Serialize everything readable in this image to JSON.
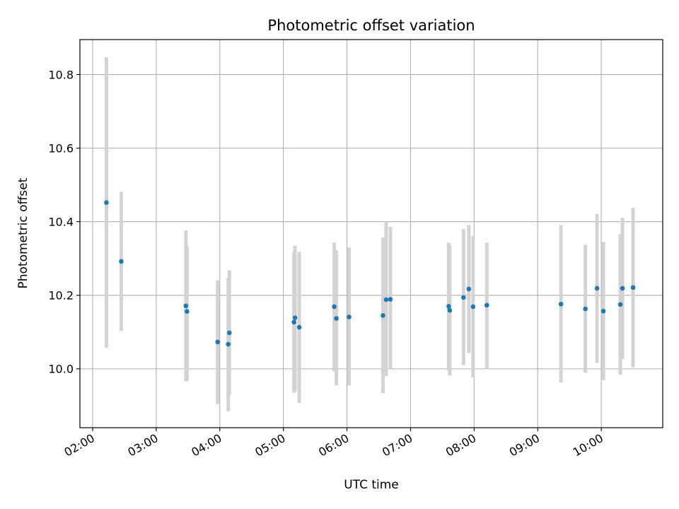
{
  "chart_data": {
    "type": "scatter",
    "title": "Photometric offset variation",
    "xlabel": "UTC time",
    "ylabel": "Photometric offset",
    "x_tick_labels": [
      "02:00",
      "03:00",
      "04:00",
      "05:00",
      "06:00",
      "07:00",
      "08:00",
      "09:00",
      "10:00"
    ],
    "y_tick_labels": [
      "10.0",
      "10.2",
      "10.4",
      "10.6",
      "10.8"
    ],
    "xlim": [
      "01:48",
      "10:58"
    ],
    "ylim": [
      9.84,
      10.895
    ],
    "grid": true,
    "colors": {
      "point": "#1f77b4",
      "errorbar": "#d3d3d3",
      "grid": "#b0b0b0",
      "axes": "#000000"
    },
    "points": [
      {
        "x": "02:13",
        "y": 10.452,
        "low": 10.057,
        "high": 10.847
      },
      {
        "x": "02:27",
        "y": 10.292,
        "low": 10.103,
        "high": 10.481
      },
      {
        "x": "03:28",
        "y": 10.171,
        "low": 9.966,
        "high": 10.376
      },
      {
        "x": "03:29",
        "y": 10.156,
        "low": 9.967,
        "high": 10.334
      },
      {
        "x": "03:58",
        "y": 10.073,
        "low": 9.904,
        "high": 10.241
      },
      {
        "x": "04:08",
        "y": 10.067,
        "low": 9.885,
        "high": 10.247
      },
      {
        "x": "04:09",
        "y": 10.098,
        "low": 9.93,
        "high": 10.268
      },
      {
        "x": "05:10",
        "y": 10.127,
        "low": 9.935,
        "high": 10.318
      },
      {
        "x": "05:11",
        "y": 10.139,
        "low": 9.94,
        "high": 10.335
      },
      {
        "x": "05:15",
        "y": 10.113,
        "low": 9.907,
        "high": 10.318
      },
      {
        "x": "05:48",
        "y": 10.169,
        "low": 9.993,
        "high": 10.343
      },
      {
        "x": "05:50",
        "y": 10.137,
        "low": 9.955,
        "high": 10.322
      },
      {
        "x": "06:02",
        "y": 10.141,
        "low": 9.955,
        "high": 10.33
      },
      {
        "x": "06:34",
        "y": 10.145,
        "low": 9.934,
        "high": 10.357
      },
      {
        "x": "06:37",
        "y": 10.188,
        "low": 9.98,
        "high": 10.4
      },
      {
        "x": "06:41",
        "y": 10.189,
        "low": 9.998,
        "high": 10.386
      },
      {
        "x": "07:36",
        "y": 10.17,
        "low": 9.995,
        "high": 10.343
      },
      {
        "x": "07:37",
        "y": 10.159,
        "low": 9.982,
        "high": 10.336
      },
      {
        "x": "07:50",
        "y": 10.194,
        "low": 10.01,
        "high": 10.38
      },
      {
        "x": "07:55",
        "y": 10.217,
        "low": 10.043,
        "high": 10.391
      },
      {
        "x": "07:59",
        "y": 10.169,
        "low": 9.976,
        "high": 10.36
      },
      {
        "x": "08:12",
        "y": 10.173,
        "low": 10.0,
        "high": 10.343
      },
      {
        "x": "09:22",
        "y": 10.176,
        "low": 9.963,
        "high": 10.391
      },
      {
        "x": "09:45",
        "y": 10.163,
        "low": 9.99,
        "high": 10.337
      },
      {
        "x": "09:56",
        "y": 10.219,
        "low": 10.016,
        "high": 10.421
      },
      {
        "x": "10:02",
        "y": 10.157,
        "low": 9.969,
        "high": 10.345
      },
      {
        "x": "10:18",
        "y": 10.175,
        "low": 9.984,
        "high": 10.366
      },
      {
        "x": "10:20",
        "y": 10.219,
        "low": 10.026,
        "high": 10.411
      },
      {
        "x": "10:30",
        "y": 10.221,
        "low": 10.004,
        "high": 10.438
      }
    ]
  }
}
